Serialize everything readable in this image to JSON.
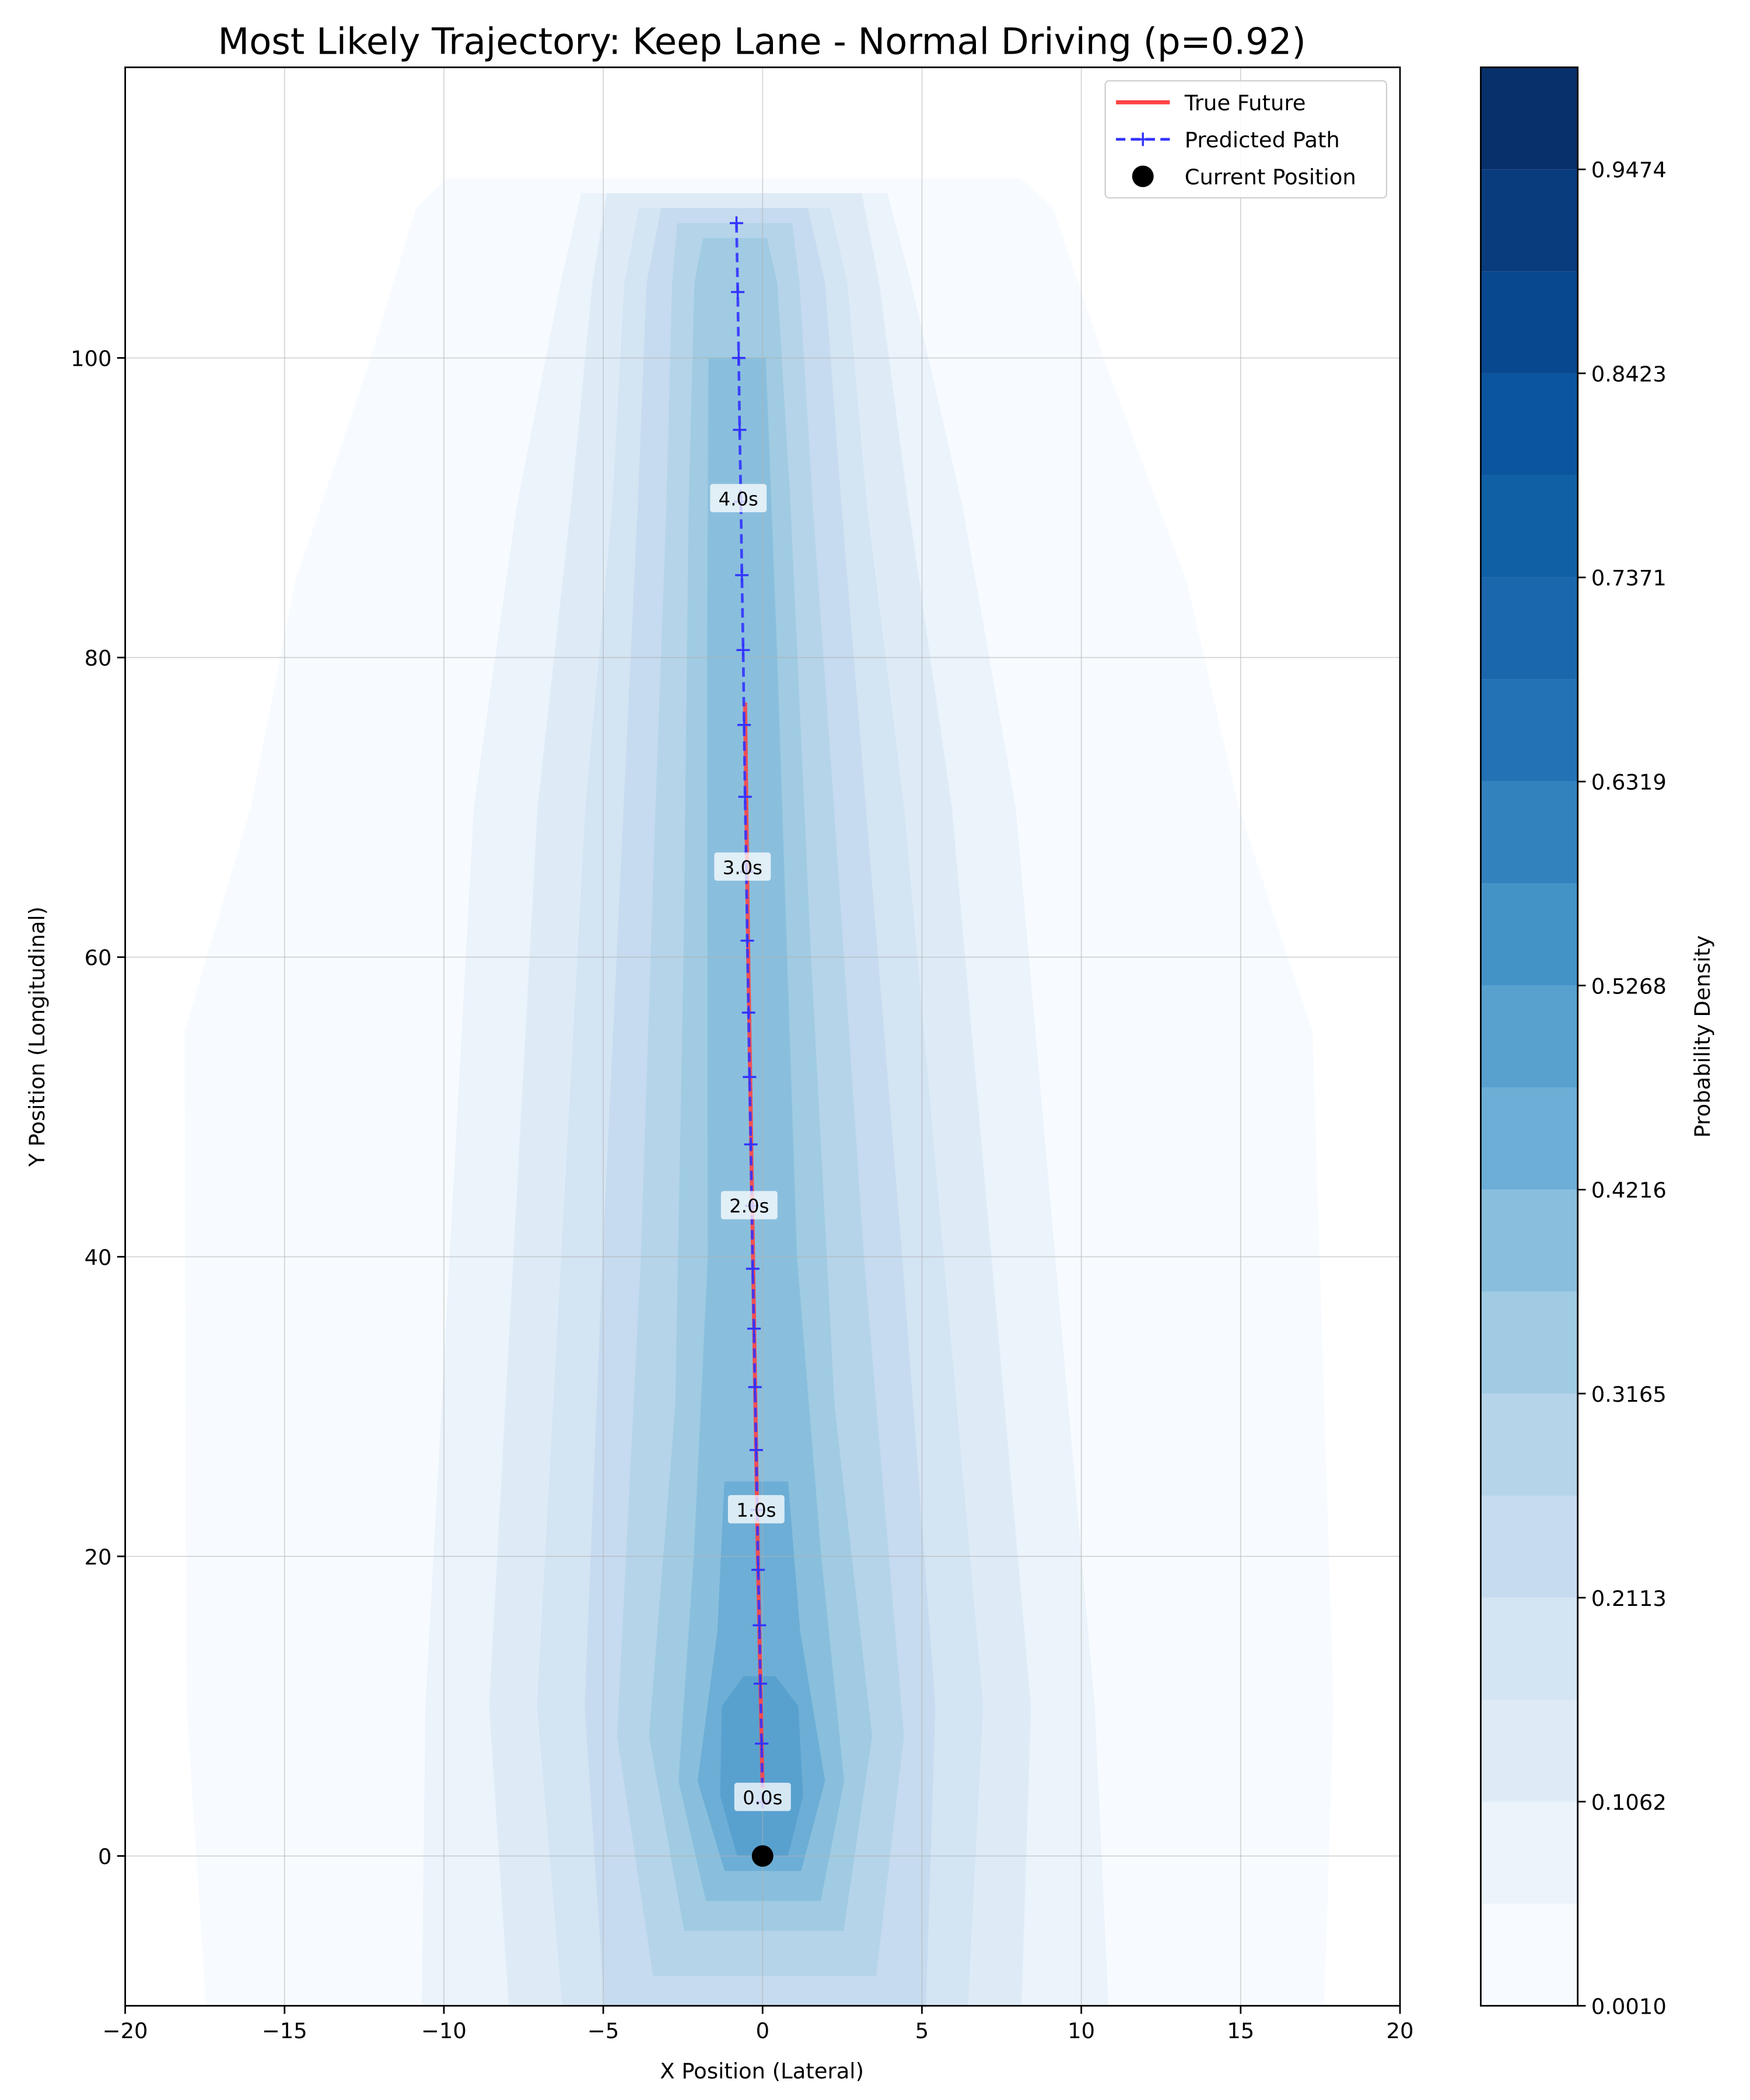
{
  "chart_data": {
    "type": "contour",
    "title": "Most Likely Trajectory: Keep Lane - Normal Driving (p=0.92)",
    "x_label": "X Position (Lateral)",
    "y_label": "Y Position (Longitudinal)",
    "xlim": [
      -20,
      20
    ],
    "ylim": [
      -10,
      119.4
    ],
    "xticks": [
      {
        "value": -20,
        "label": "−20"
      },
      {
        "value": -15,
        "label": "−15"
      },
      {
        "value": -10,
        "label": "−10"
      },
      {
        "value": -5,
        "label": "−5"
      },
      0,
      5,
      10,
      15,
      20
    ],
    "yticks": [
      0,
      20,
      40,
      60,
      80,
      100
    ],
    "grid": true,
    "legend": "upper right",
    "colorbar": {
      "label": "Probability Density",
      "levels": [
        0.001,
        0.0536,
        0.1062,
        0.1587,
        0.2113,
        0.2639,
        0.3165,
        0.369,
        0.4216,
        0.4742,
        0.5268,
        0.5793,
        0.6319,
        0.6845,
        0.7371,
        0.7897,
        0.8423,
        0.8948,
        0.9474,
        1.0
      ],
      "colors": [
        "#f7fbff",
        "#ebf3fb",
        "#deebf7",
        "#d3e4f3",
        "#c6dbef",
        "#b5d4e9",
        "#a0cbe2",
        "#89bfdd",
        "#6daed6",
        "#58a1cf",
        "#4493c7",
        "#3282be",
        "#2272b5",
        "#1a67ad",
        "#1060a6",
        "#0b559f",
        "#08488e",
        "#083c7d",
        "#08306b"
      ],
      "ticks": [
        {
          "value": 0.001,
          "label": "0.0010"
        },
        0.1062,
        0.2113,
        0.3165,
        0.4216,
        0.5268,
        0.6319,
        0.7371,
        0.8423,
        0.9474
      ]
    },
    "series": [
      {
        "name": "True Future",
        "color": "#ff4444",
        "style": "solid",
        "x": [
          0.0,
          -0.15,
          -0.3,
          -0.45,
          -0.55
        ],
        "y": [
          4.5,
          20,
          40,
          60,
          77
        ]
      },
      {
        "name": "Predicted Path",
        "color": "#3333ff",
        "style": "dashed-plus",
        "x": [
          0.0,
          -0.03,
          -0.07,
          -0.1,
          -0.14,
          -0.17,
          -0.2,
          -0.24,
          -0.27,
          -0.31,
          -0.34,
          -0.37,
          -0.41,
          -0.44,
          -0.48,
          -0.51,
          -0.55,
          -0.58,
          -0.61,
          -0.65,
          -0.68,
          -0.72,
          -0.75,
          -0.78,
          -0.82
        ],
        "y": [
          3.6,
          7.5,
          11.5,
          15.4,
          19.1,
          23.1,
          27.1,
          31.3,
          35.2,
          39.2,
          43.4,
          47.5,
          52.0,
          56.3,
          61.1,
          65.7,
          70.7,
          75.5,
          80.5,
          85.5,
          90.4,
          95.2,
          100.0,
          104.4,
          109.0
        ]
      },
      {
        "name": "Current Position",
        "color": "#000000",
        "style": "dot",
        "x": [
          0
        ],
        "y": [
          0
        ]
      }
    ],
    "annotations": [
      {
        "text": "0.0s",
        "x": 0.0,
        "y": 3.9
      },
      {
        "text": "1.0s",
        "x": -0.2,
        "y": 23.1
      },
      {
        "text": "2.0s",
        "x": -0.42,
        "y": 43.4
      },
      {
        "text": "3.0s",
        "x": -0.63,
        "y": 66.0
      },
      {
        "text": "4.0s",
        "x": -0.76,
        "y": 90.6
      }
    ]
  }
}
